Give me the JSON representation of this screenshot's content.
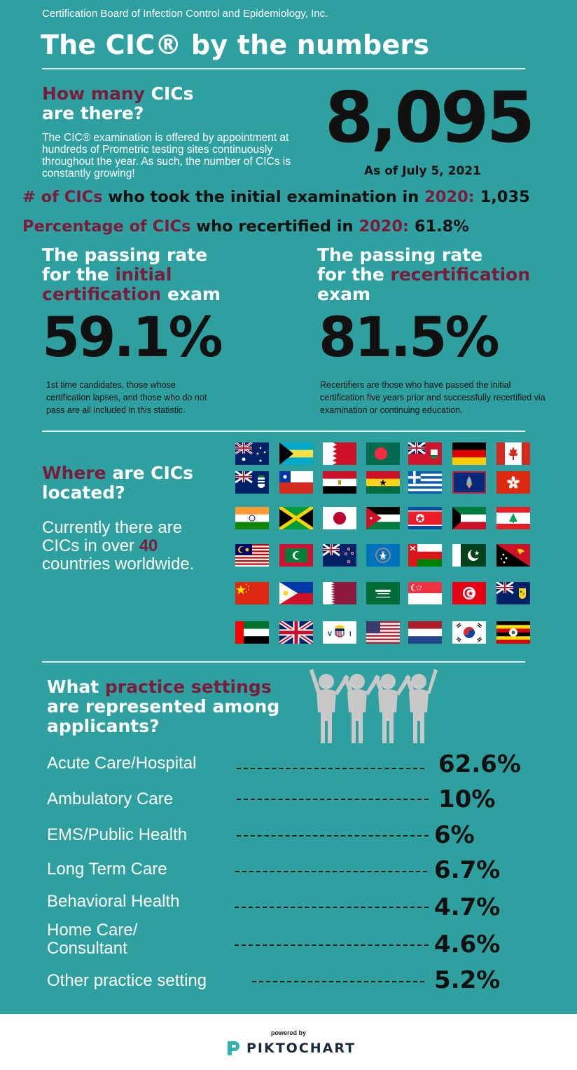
{
  "header": {
    "organization": "Certification Board of Infection Control and Epidemiology, Inc.",
    "title": "The CIC® by the numbers"
  },
  "how_many": {
    "heading_accent": "How many",
    "heading_rest1": " CICs",
    "heading_line2": "are there?",
    "body": "The CIC® examination is offered by appointment at hundreds of Prometric testing sites continuously throughout the year. As such, the number of CICs is constantly growing!",
    "count": "8,095",
    "as_of": "As of July 5, 2021"
  },
  "stats": {
    "initial_accent": "# of CICs",
    "initial_mid": " who took the initial examination in ",
    "initial_year": "2020:",
    "initial_value": " 1,035",
    "recert_accent": "Percentage of CICs",
    "recert_mid": " who recertified in ",
    "recert_year": "2020:",
    "recert_value": " 61.8%"
  },
  "passing_initial": {
    "line1": "The passing rate",
    "line2_pre": "for the ",
    "line2_accent": "initial",
    "line3_accent": "certification",
    "line3_rest": " exam",
    "rate": "59.1%",
    "note": "1st time candidates, those whose certification lapses, and those who do not pass are all included in this statistic."
  },
  "passing_recert": {
    "line1": "The passing rate",
    "line2_pre": "for the ",
    "line2_accent": "recertification",
    "line3": "exam",
    "rate": "81.5%",
    "note": "Recertifiers are those who have passed the initial certification five years prior and successfully recertified via examination or continuing education."
  },
  "where": {
    "heading_accent": "Where",
    "heading_rest": " are CICs",
    "heading_line2": "located?",
    "body_pre": "Currently there are CICs in over ",
    "body_num": "40",
    "body_post": " countries worldwide."
  },
  "flags": [
    "australia",
    "bahamas",
    "bahrain",
    "bangladesh",
    "bermuda",
    "germany",
    "canada",
    "cayman-islands",
    "chile",
    "egypt",
    "ghana",
    "greece",
    "guam",
    "hong-kong",
    "india",
    "jamaica",
    "japan",
    "jordan",
    "north-korea",
    "kuwait",
    "lebanon",
    "malaysia",
    "maldives",
    "new-zealand",
    "northern-mariana-islands",
    "oman",
    "pakistan",
    "papua-new-guinea",
    "china",
    "philippines",
    "qatar",
    "saudi-arabia",
    "singapore",
    "tunisia",
    "turks-and-caicos",
    "uae",
    "united-kingdom",
    "us-virgin-islands",
    "united-states",
    "netherlands",
    "south-korea",
    "uganda"
  ],
  "practice": {
    "heading_pre": "What ",
    "heading_accent": "practice settings",
    "heading_line2": "are represented among",
    "heading_line3": "applicants?",
    "icon": "people-group-icon",
    "rows": [
      {
        "label": "Acute Care/Hospital",
        "value": "62.6%"
      },
      {
        "label": "Ambulatory Care",
        "value": "10%"
      },
      {
        "label": "EMS/Public Health",
        "value": "6%"
      },
      {
        "label": "Long Term Care",
        "value": "6.7%"
      },
      {
        "label": "Behavioral Health",
        "value": "4.7%"
      },
      {
        "label": "Home Care/\nConsultant",
        "value": "4.6%"
      },
      {
        "label": "Other practice setting",
        "value": "5.2%"
      }
    ]
  },
  "footer": {
    "powered_by": "powered by",
    "brand": "PIKTOCHART"
  },
  "colors": {
    "background": "#2fa0a0",
    "accent": "#7a1c3c",
    "text_white": "#ffffff",
    "text_black": "#111111"
  }
}
